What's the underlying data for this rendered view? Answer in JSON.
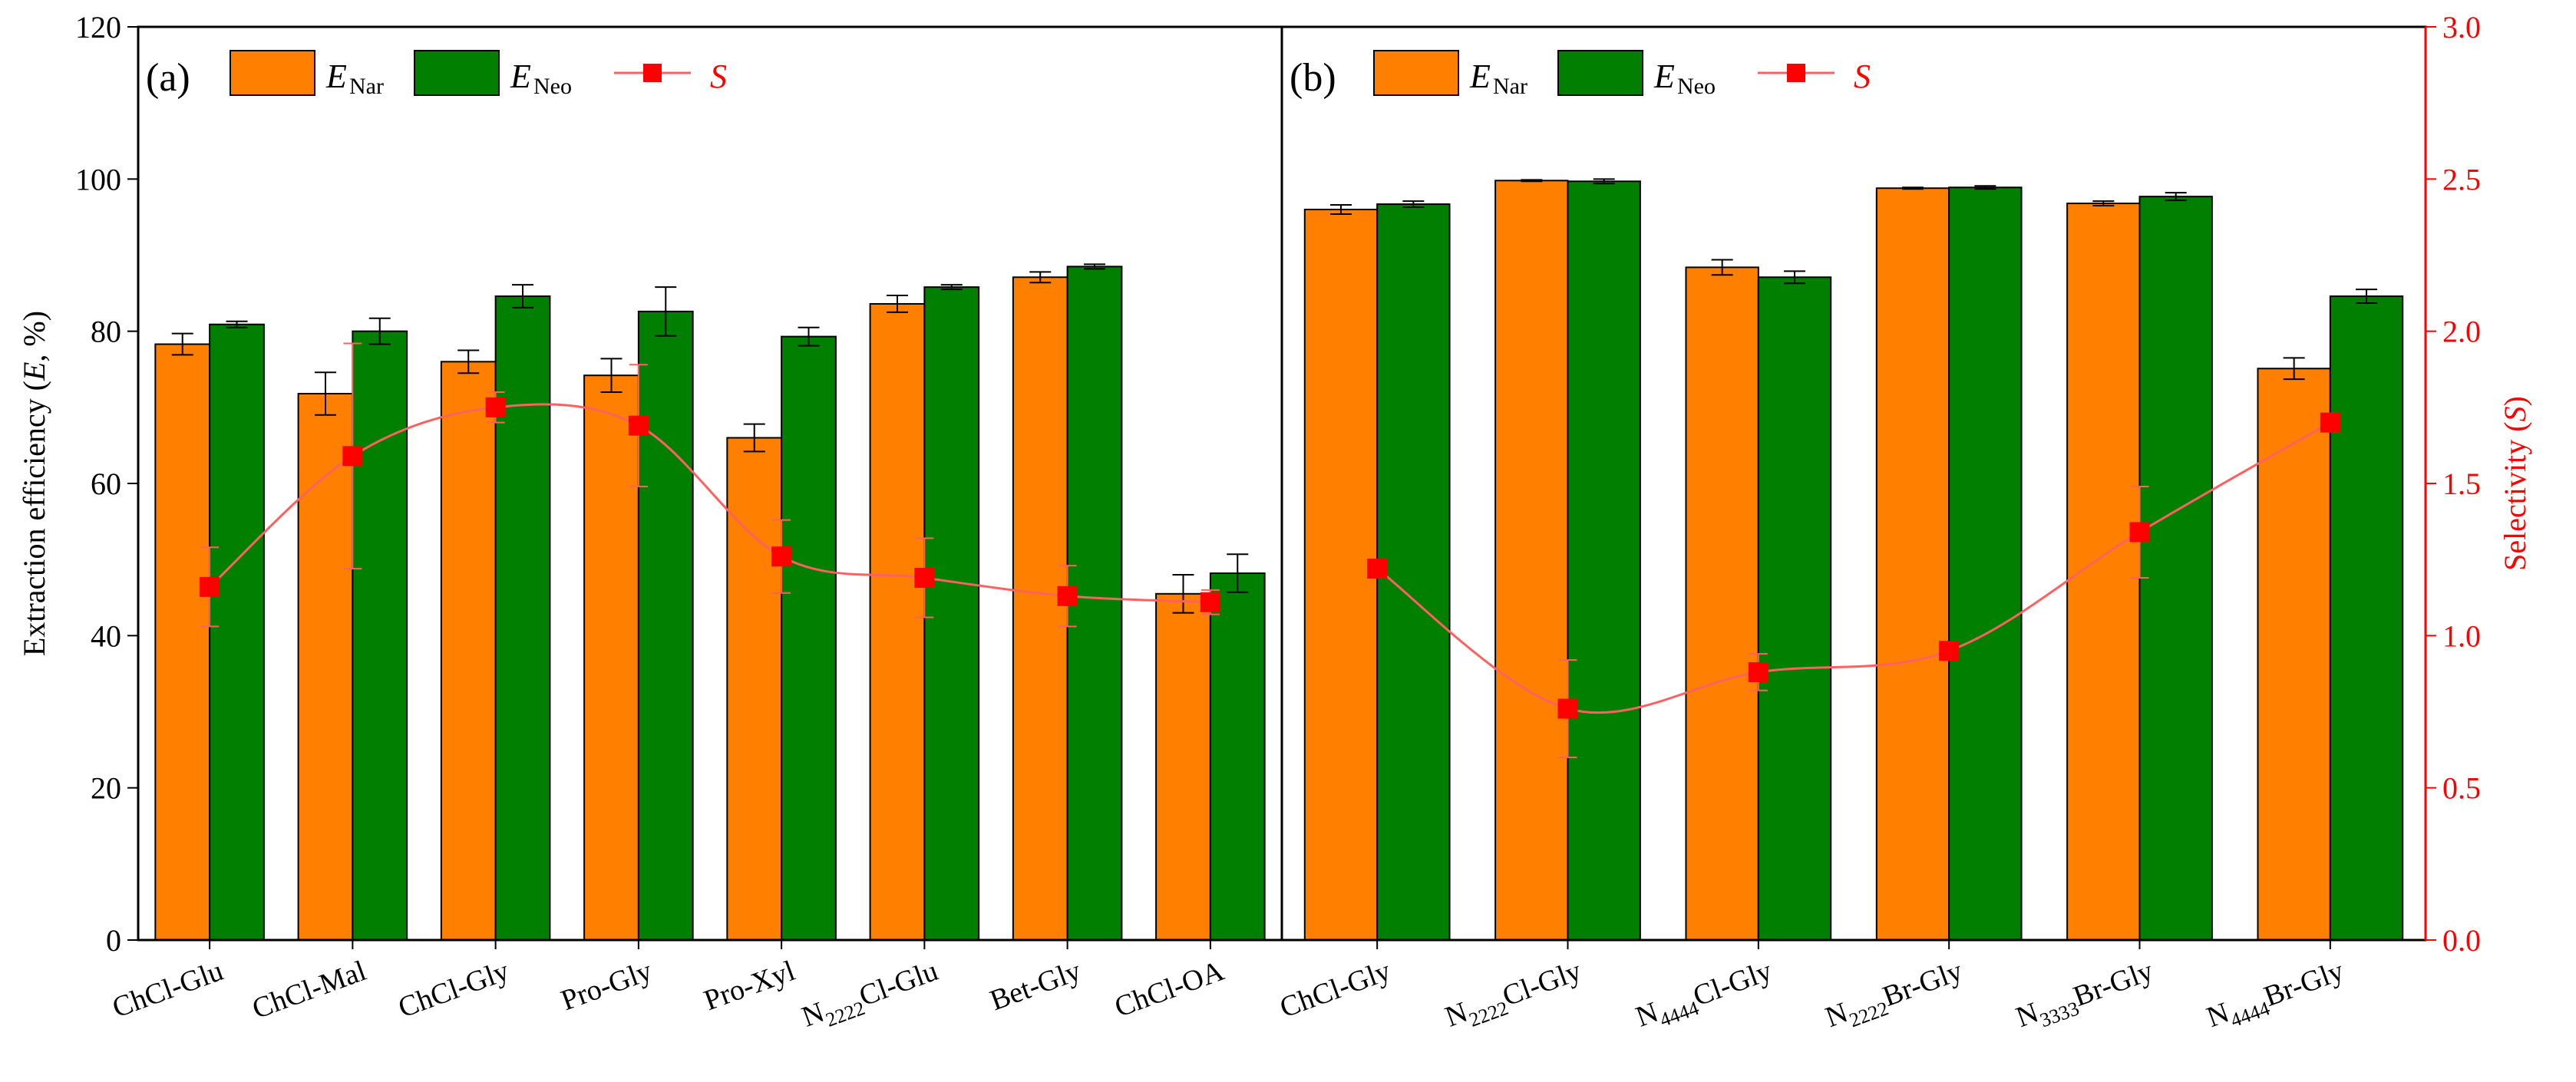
{
  "colors": {
    "nar": "#FF8000",
    "neo": "#007F00",
    "selectivity": "#FF0000",
    "selectivity_line": "#FF6060",
    "axis": "#000000"
  },
  "chart_data": [
    {
      "panel_label": "(a)",
      "type": "bar",
      "categories": [
        "ChCl-Glu",
        "ChCl-Mal",
        "ChCl-Gly",
        "Pro-Gly",
        "Pro-Xyl",
        "N2222Cl-Glu",
        "Bet-Gly",
        "ChCl-OA"
      ],
      "category_labels": [
        {
          "pre": "ChCl-Glu",
          "sub": "",
          "post": ""
        },
        {
          "pre": "ChCl-Mal",
          "sub": "",
          "post": ""
        },
        {
          "pre": "ChCl-Gly",
          "sub": "",
          "post": ""
        },
        {
          "pre": "Pro-Gly",
          "sub": "",
          "post": ""
        },
        {
          "pre": "Pro-Xyl",
          "sub": "",
          "post": ""
        },
        {
          "pre": "N",
          "sub": "2222",
          "post": "Cl-Glu"
        },
        {
          "pre": "Bet-Gly",
          "sub": "",
          "post": ""
        },
        {
          "pre": "ChCl-OA",
          "sub": "",
          "post": ""
        }
      ],
      "series": [
        {
          "name": "E_Nar",
          "values": [
            78.3,
            71.8,
            76.0,
            74.2,
            66.0,
            83.6,
            87.1,
            45.5
          ],
          "errors": [
            1.4,
            2.8,
            1.5,
            2.2,
            1.8,
            1.1,
            0.7,
            2.5
          ]
        },
        {
          "name": "E_Neo",
          "values": [
            80.9,
            80.0,
            84.6,
            82.6,
            79.3,
            85.8,
            88.5,
            48.2
          ],
          "errors": [
            0.4,
            1.7,
            1.5,
            3.2,
            1.2,
            0.3,
            0.3,
            2.5
          ]
        }
      ],
      "selectivity": {
        "name": "S",
        "values": [
          1.16,
          1.59,
          1.75,
          1.69,
          1.26,
          1.19,
          1.13,
          1.11
        ],
        "errors": [
          0.13,
          0.37,
          0.05,
          0.2,
          0.12,
          0.13,
          0.1,
          0.04
        ]
      },
      "ylabel": "Extraction efficiency (E, %)",
      "ylim": [
        0,
        120
      ],
      "yticks": [
        "0",
        "20",
        "40",
        "60",
        "80",
        "100",
        "120"
      ]
    },
    {
      "panel_label": "(b)",
      "type": "bar",
      "categories": [
        "ChCl-Gly",
        "N2222Cl-Gly",
        "N4444Cl-Gly",
        "N2222Br-Gly",
        "N3333Br-Gly",
        "N4444Br-Gly"
      ],
      "category_labels": [
        {
          "pre": "ChCl-Gly",
          "sub": "",
          "post": ""
        },
        {
          "pre": "N",
          "sub": "2222",
          "post": "Cl-Gly"
        },
        {
          "pre": "N",
          "sub": "4444",
          "post": "Cl-Gly"
        },
        {
          "pre": "N",
          "sub": "2222",
          "post": "Br-Gly"
        },
        {
          "pre": "N",
          "sub": "3333",
          "post": "Br-Gly"
        },
        {
          "pre": "N",
          "sub": "4444",
          "post": "Br-Gly"
        }
      ],
      "series": [
        {
          "name": "E_Nar",
          "values": [
            96.0,
            99.8,
            88.4,
            98.8,
            96.8,
            75.1
          ],
          "errors": [
            0.6,
            0.1,
            1.0,
            0.1,
            0.3,
            1.4
          ]
        },
        {
          "name": "E_Neo",
          "values": [
            96.7,
            99.7,
            87.1,
            98.9,
            97.7,
            84.6
          ],
          "errors": [
            0.4,
            0.3,
            0.8,
            0.2,
            0.5,
            0.9
          ]
        }
      ],
      "selectivity": {
        "name": "S",
        "values": [
          1.22,
          0.76,
          0.88,
          0.95,
          1.34,
          1.7
        ],
        "errors": [
          0.02,
          0.16,
          0.06,
          0.02,
          0.15,
          0.03
        ]
      },
      "ylabel_right": "Selectivity (S)",
      "ylim_right": [
        0,
        3.0
      ],
      "yticks_right": [
        "0.0",
        "0.5",
        "1.0",
        "1.5",
        "2.0",
        "2.5",
        "3.0"
      ]
    }
  ],
  "legend": {
    "nar": {
      "main": "E",
      "sub": "Nar"
    },
    "neo": {
      "main": "E",
      "sub": "Neo"
    },
    "s": "S"
  }
}
